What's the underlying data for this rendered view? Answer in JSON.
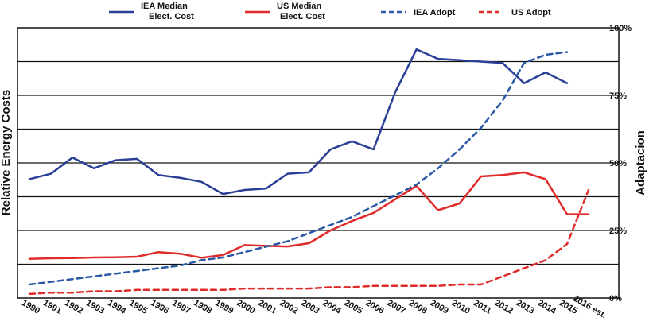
{
  "chart_data": {
    "type": "line",
    "categories": [
      "1990",
      "1991",
      "1992",
      "1993",
      "1994",
      "1995",
      "1996",
      "1997",
      "1998",
      "1999",
      "2000",
      "2001",
      "2002",
      "2003",
      "2004",
      "2005",
      "2006",
      "2007",
      "2008",
      "2009",
      "2010",
      "2011",
      "2012",
      "2013",
      "2014",
      "2015",
      "2016 est."
    ],
    "ylabel_left": "Relative Energy Costs",
    "ylabel_right": "Adaptacion",
    "y_right_ticks": [
      "0%",
      "25%",
      "50%",
      "75%",
      "100%"
    ],
    "ylim_right": [
      0,
      100
    ],
    "grid": true,
    "legend_position": "top",
    "series": [
      {
        "name": "IEA Median Elect. Cost",
        "axis": "left",
        "style": "solid",
        "color": "#2a3f96",
        "values": [
          44,
          46,
          52,
          48,
          51,
          51.5,
          45.5,
          44.5,
          43,
          38.5,
          40,
          40.5,
          46,
          46.5,
          55,
          58,
          55,
          76,
          92,
          88.5,
          88,
          87.5,
          87,
          79.5,
          83.5,
          79.5,
          null
        ]
      },
      {
        "name": "US Median Elect. Cost",
        "axis": "left",
        "style": "solid",
        "color": "#e02b2b",
        "values": [
          14.5,
          14.7,
          14.8,
          15,
          15.1,
          15.3,
          17,
          16.4,
          14.9,
          15.9,
          19.6,
          19.3,
          19.1,
          20.3,
          25,
          28.5,
          31.5,
          36.5,
          41.5,
          32.5,
          35,
          45,
          45.5,
          46.5,
          44,
          31,
          31
        ]
      },
      {
        "name": "IEA Adopt",
        "axis": "right",
        "style": "dashed",
        "color": "#2a5aa6",
        "values": [
          5,
          6,
          7,
          8,
          9,
          10,
          11,
          12,
          14,
          15,
          17,
          19,
          21,
          24,
          27,
          30,
          34,
          38,
          42,
          48,
          55,
          63,
          73,
          87,
          90,
          91,
          null
        ]
      },
      {
        "name": "US Adopt",
        "axis": "right",
        "style": "dashed",
        "color": "#e02b2b",
        "values": [
          1.5,
          2,
          2,
          2.5,
          2.5,
          3,
          3,
          3,
          3,
          3,
          3.5,
          3.5,
          3.5,
          3.5,
          4,
          4,
          4.5,
          4.5,
          4.5,
          4.5,
          5,
          5,
          8,
          11,
          14,
          20,
          40
        ]
      }
    ]
  }
}
